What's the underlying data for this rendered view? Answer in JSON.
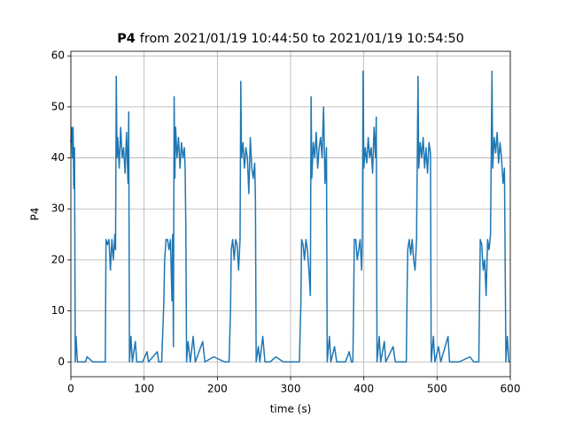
{
  "chart_data": {
    "type": "line",
    "title_bold": "P4",
    "title": "from 2021/01/19 10:44:50 to 2021/01/19 10:54:50",
    "xlabel": "time (s)",
    "ylabel": "P4",
    "xlim": [
      0,
      600
    ],
    "ylim": [
      -2.9,
      60.9
    ],
    "xticks": [
      0,
      100,
      200,
      300,
      400,
      500,
      600
    ],
    "yticks": [
      0,
      10,
      20,
      30,
      40,
      50,
      60
    ],
    "grid": true,
    "series": [
      {
        "name": "P4",
        "color": "#1f77b4",
        "x": [
          0,
          1,
          2,
          3,
          4,
          5,
          6,
          7,
          9,
          20,
          22,
          30,
          40,
          46,
          47,
          48,
          50,
          52,
          54,
          56,
          58,
          60,
          61,
          62,
          63,
          64,
          66,
          68,
          70,
          72,
          74,
          76,
          78,
          79,
          80,
          82,
          84,
          88,
          90,
          98,
          104,
          106,
          118,
          120,
          124,
          127,
          128,
          130,
          132,
          134,
          136,
          138,
          139,
          140,
          141,
          142,
          143,
          145,
          147,
          149,
          151,
          153,
          155,
          156,
          157,
          158,
          160,
          163,
          167,
          170,
          180,
          183,
          195,
          210,
          216,
          218,
          219,
          221,
          223,
          225,
          227,
          229,
          231,
          232,
          233,
          235,
          237,
          239,
          241,
          243,
          245,
          247,
          249,
          251,
          252,
          253,
          256,
          258,
          262,
          265,
          272,
          280,
          290,
          300,
          312,
          314,
          315,
          317,
          319,
          321,
          323,
          325,
          327,
          328,
          329,
          331,
          333,
          335,
          337,
          339,
          341,
          343,
          345,
          347,
          349,
          350,
          353,
          355,
          360,
          363,
          375,
          380,
          383,
          385,
          386,
          387,
          389,
          391,
          393,
          395,
          397,
          398,
          399,
          400,
          402,
          404,
          406,
          408,
          410,
          412,
          414,
          416,
          417,
          418,
          421,
          423,
          428,
          430,
          440,
          443,
          450,
          458,
          459,
          460,
          462,
          464,
          466,
          468,
          470,
          472,
          474,
          475,
          477,
          479,
          481,
          483,
          485,
          487,
          489,
          491,
          492,
          495,
          497,
          502,
          505,
          515,
          517,
          530,
          545,
          550,
          557,
          558,
          559,
          561,
          563,
          565,
          567,
          569,
          571,
          573,
          575,
          576,
          578,
          580,
          582,
          584,
          586,
          588,
          590,
          592,
          594,
          596,
          598,
          600
        ],
        "values": [
          43,
          46,
          40,
          46,
          34,
          42,
          0,
          5,
          0,
          0,
          1,
          0,
          0,
          0,
          0,
          24,
          23,
          24,
          18,
          24,
          20,
          25,
          22,
          56,
          40,
          44,
          38,
          46,
          40,
          42,
          37,
          45,
          35,
          49,
          0,
          5,
          0,
          4,
          0,
          0,
          2,
          0,
          2,
          0,
          0,
          12,
          20,
          24,
          24,
          22,
          24,
          12,
          25,
          3,
          52,
          36,
          46,
          40,
          44,
          38,
          43,
          40,
          42,
          38,
          26,
          0,
          4,
          0,
          5,
          0,
          4,
          0,
          1,
          0,
          0,
          10,
          22,
          24,
          20,
          24,
          23,
          18,
          24,
          55,
          40,
          43,
          38,
          42,
          40,
          33,
          44,
          38,
          36,
          39,
          32,
          0,
          3,
          0,
          5,
          0,
          0,
          1,
          0,
          0,
          0,
          11,
          24,
          23,
          20,
          24,
          22,
          18,
          13,
          52,
          36,
          43,
          40,
          45,
          38,
          42,
          44,
          40,
          50,
          35,
          42,
          0,
          5,
          0,
          3,
          0,
          0,
          2,
          0,
          0,
          10,
          24,
          24,
          20,
          22,
          24,
          18,
          24,
          57,
          38,
          42,
          39,
          44,
          40,
          42,
          37,
          46,
          40,
          48,
          0,
          5,
          0,
          4,
          0,
          3,
          0,
          0,
          0,
          13,
          22,
          24,
          21,
          24,
          20,
          18,
          24,
          56,
          38,
          43,
          40,
          44,
          38,
          42,
          37,
          43,
          41,
          0,
          5,
          0,
          3,
          0,
          5,
          0,
          0,
          1,
          0,
          0,
          12,
          24,
          23,
          18,
          20,
          13,
          24,
          22,
          25,
          57,
          38,
          44,
          41,
          45,
          39,
          43,
          40,
          35,
          38,
          0,
          5,
          0,
          0
        ]
      }
    ]
  }
}
